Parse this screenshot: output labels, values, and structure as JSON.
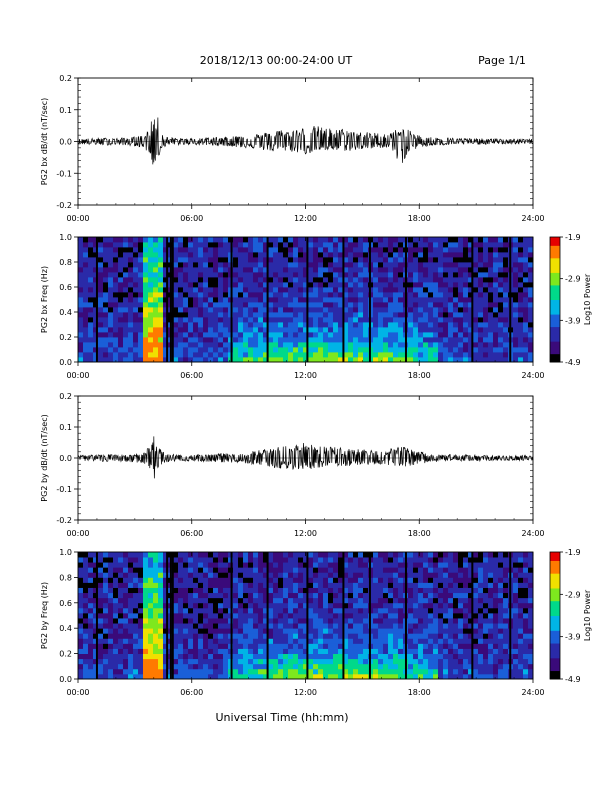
{
  "header": {
    "title": "2018/12/13  00:00-24:00 UT",
    "page": "Page 1/1"
  },
  "x_axis_title": "Universal Time (hh:mm)",
  "x_tick_labels": [
    "00:00",
    "06:00",
    "12:00",
    "18:00",
    "24:00"
  ],
  "colorbar": {
    "label": "Log10 Power",
    "tick_labels": [
      "-1.9",
      "-2.9",
      "-3.9",
      "-4.9"
    ],
    "colors": [
      "#000000",
      "#3a0a7a",
      "#2a2aa8",
      "#1a5fd8",
      "#00b4e6",
      "#00d98a",
      "#7ee81e",
      "#f0e000",
      "#ff7a00",
      "#e60000"
    ]
  },
  "chart_data": [
    {
      "type": "line",
      "ylabel": "PG2 bx dB/dt (nT/sec)",
      "xlim": [
        0,
        24
      ],
      "ylim": [
        -0.2,
        0.2
      ],
      "y_tick_labels": [
        "0.2",
        "0.1",
        "0.0",
        "-0.1",
        "-0.2"
      ],
      "y_ticks": [
        0.2,
        0.1,
        0.0,
        -0.1,
        -0.2
      ],
      "series": [
        {
          "x": [
            0,
            0.5,
            1,
            1.5,
            2,
            2.5,
            3,
            3.5,
            3.8,
            4,
            4.2,
            4.4,
            4.6,
            5,
            5.5,
            6,
            6.5,
            7,
            7.5,
            8,
            8.5,
            9,
            9.5,
            10,
            10.5,
            11,
            11.5,
            12,
            12.5,
            13,
            13.5,
            14,
            14.5,
            15,
            15.5,
            16,
            16.5,
            17,
            17.5,
            18,
            18.5,
            19,
            19.5,
            20,
            21,
            22,
            23,
            24
          ],
          "y": [
            0.008,
            0.01,
            0.01,
            0.012,
            0.01,
            0.012,
            0.015,
            0.02,
            0.05,
            0.09,
            0.08,
            0.03,
            0.015,
            0.012,
            0.01,
            0.01,
            0.012,
            0.012,
            0.015,
            0.015,
            0.02,
            0.02,
            0.025,
            0.03,
            0.04,
            0.035,
            0.04,
            0.045,
            0.05,
            0.045,
            0.04,
            0.04,
            0.035,
            0.03,
            0.03,
            0.025,
            0.03,
            0.045,
            0.035,
            0.02,
            0.015,
            0.012,
            0.012,
            0.01,
            0.01,
            0.008,
            0.008,
            0.008
          ],
          "y_min": [
            -0.008,
            -0.01,
            -0.01,
            -0.012,
            -0.01,
            -0.012,
            -0.015,
            -0.02,
            -0.05,
            -0.085,
            -0.06,
            -0.03,
            -0.015,
            -0.012,
            -0.01,
            -0.01,
            -0.012,
            -0.012,
            -0.015,
            -0.015,
            -0.02,
            -0.02,
            -0.025,
            -0.03,
            -0.035,
            -0.03,
            -0.035,
            -0.04,
            -0.035,
            -0.03,
            -0.03,
            -0.03,
            -0.03,
            -0.025,
            -0.025,
            -0.02,
            -0.02,
            -0.08,
            -0.03,
            -0.02,
            -0.015,
            -0.012,
            -0.012,
            -0.01,
            -0.01,
            -0.008,
            -0.008,
            -0.008
          ]
        }
      ]
    },
    {
      "type": "heatmap",
      "ylabel": "PG2 bx Freq (Hz)",
      "xlim": [
        0,
        24
      ],
      "ylim": [
        0,
        1.0
      ],
      "y_tick_labels": [
        "1.0",
        "0.8",
        "0.6",
        "0.4",
        "0.2",
        "0.0"
      ],
      "y_ticks": [
        1.0,
        0.8,
        0.6,
        0.4,
        0.2,
        0.0
      ],
      "z_range": [
        -4.9,
        -1.9
      ],
      "gaps_hours": [
        1.0,
        4.7,
        4.9,
        5.0,
        8.1,
        10.0,
        12.1,
        14.0,
        15.4,
        17.3,
        20.8,
        22.8
      ]
    },
    {
      "type": "line",
      "ylabel": "PG2 by dB/dt (nT/sec)",
      "xlim": [
        0,
        24
      ],
      "ylim": [
        -0.2,
        0.2
      ],
      "y_tick_labels": [
        "0.2",
        "0.1",
        "0.0",
        "-0.1",
        "-0.2"
      ],
      "y_ticks": [
        0.2,
        0.1,
        0.0,
        -0.1,
        -0.2
      ],
      "series": [
        {
          "x": [
            0,
            0.5,
            1,
            1.5,
            2,
            2.5,
            3,
            3.5,
            3.8,
            4,
            4.2,
            4.4,
            4.6,
            5,
            5.5,
            6,
            6.5,
            7,
            7.5,
            8,
            8.5,
            9,
            9.5,
            10,
            10.5,
            11,
            11.5,
            12,
            12.5,
            13,
            13.5,
            14,
            14.5,
            15,
            15.5,
            16,
            16.5,
            17,
            17.5,
            18,
            18.5,
            19,
            19.5,
            20,
            21,
            22,
            23,
            24
          ],
          "y": [
            0.008,
            0.01,
            0.01,
            0.012,
            0.01,
            0.012,
            0.015,
            0.02,
            0.04,
            0.08,
            0.05,
            0.03,
            0.015,
            0.012,
            0.01,
            0.01,
            0.012,
            0.012,
            0.015,
            0.015,
            0.015,
            0.02,
            0.025,
            0.03,
            0.035,
            0.04,
            0.045,
            0.05,
            0.04,
            0.04,
            0.035,
            0.035,
            0.03,
            0.03,
            0.025,
            0.025,
            0.03,
            0.04,
            0.03,
            0.02,
            0.015,
            0.012,
            0.012,
            0.01,
            0.01,
            0.008,
            0.008,
            0.008
          ],
          "y_min": [
            -0.008,
            -0.01,
            -0.01,
            -0.012,
            -0.01,
            -0.012,
            -0.015,
            -0.02,
            -0.04,
            -0.07,
            -0.05,
            -0.03,
            -0.015,
            -0.012,
            -0.01,
            -0.01,
            -0.012,
            -0.012,
            -0.015,
            -0.015,
            -0.015,
            -0.02,
            -0.025,
            -0.03,
            -0.035,
            -0.035,
            -0.04,
            -0.04,
            -0.035,
            -0.03,
            -0.03,
            -0.03,
            -0.025,
            -0.025,
            -0.02,
            -0.02,
            -0.025,
            -0.03,
            -0.025,
            -0.02,
            -0.015,
            -0.012,
            -0.012,
            -0.01,
            -0.01,
            -0.008,
            -0.008,
            -0.008
          ]
        }
      ]
    },
    {
      "type": "heatmap",
      "ylabel": "PG2 by Freq (Hz)",
      "xlim": [
        0,
        24
      ],
      "ylim": [
        0,
        1.0
      ],
      "y_tick_labels": [
        "1.0",
        "0.8",
        "0.6",
        "0.4",
        "0.2",
        "0.0"
      ],
      "y_ticks": [
        1.0,
        0.8,
        0.6,
        0.4,
        0.2,
        0.0
      ],
      "z_range": [
        -4.9,
        -1.9
      ],
      "gaps_hours": [
        1.0,
        4.7,
        4.9,
        5.0,
        8.1,
        10.0,
        12.1,
        14.0,
        15.4,
        17.3,
        20.8,
        22.8
      ]
    }
  ]
}
